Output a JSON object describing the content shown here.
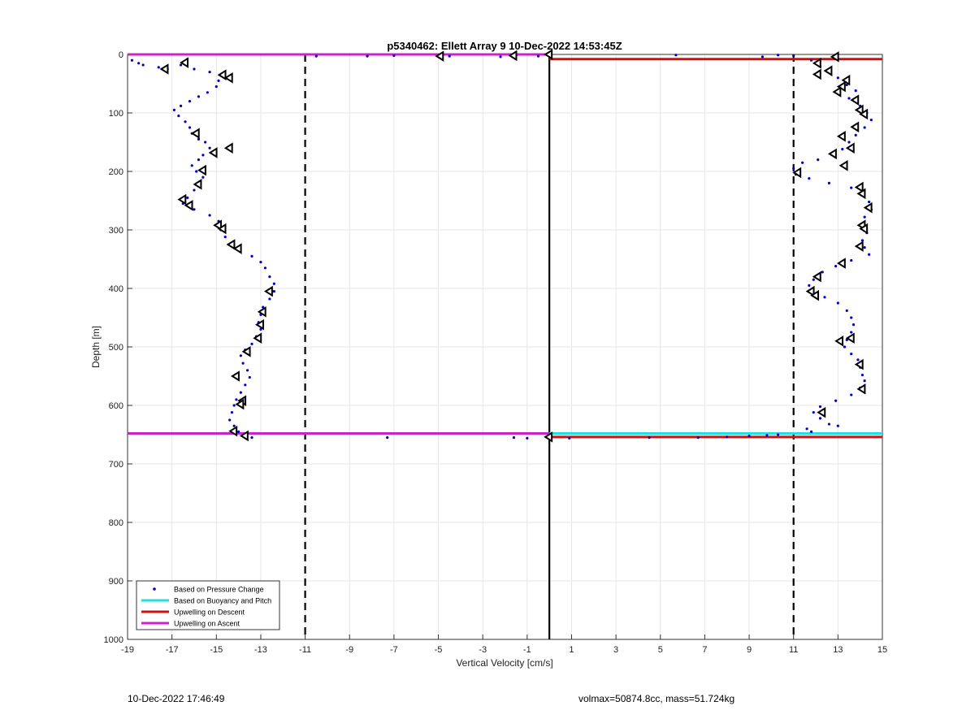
{
  "chart_data": {
    "type": "scatter",
    "title": "p5340462: Ellett Array 9 10-Dec-2022 14:53:45Z",
    "xlabel": "Vertical Velocity [cm/s]",
    "ylabel": "Depth [m]",
    "xlim": [
      -19,
      15
    ],
    "ylim": [
      1000,
      0
    ],
    "x_ticks": [
      "-19",
      "-17",
      "-15",
      "-13",
      "-11",
      "-9",
      "-7",
      "-5",
      "-3",
      "-1",
      "1",
      "3",
      "5",
      "7",
      "9",
      "11",
      "13",
      "15"
    ],
    "y_ticks": [
      "0",
      "100",
      "200",
      "300",
      "400",
      "500",
      "600",
      "700",
      "800",
      "900",
      "1000"
    ],
    "grid": true,
    "y_reversed": true,
    "legend_position": "bottom-left",
    "legend": [
      {
        "label": "Based on Pressure Change",
        "color": "#0000cc",
        "kind": "dot"
      },
      {
        "label": "Based on Buoyancy and Pitch",
        "color": "#22e0e0",
        "kind": "line"
      },
      {
        "label": "Upwelling on Descent",
        "color": "#cc1111",
        "kind": "line"
      },
      {
        "label": "Upwelling on Ascent",
        "color": "#cc22cc",
        "kind": "line"
      }
    ],
    "reference_lines": {
      "vertical_dashed": [
        -11,
        11
      ],
      "vertical_solid": [
        0
      ]
    },
    "series": [
      {
        "name": "Based on Pressure Change",
        "color": "#0000cc",
        "points": [
          [
            -18.8,
            10
          ],
          [
            -18.5,
            15
          ],
          [
            -18.3,
            18
          ],
          [
            -17.6,
            22
          ],
          [
            -17.2,
            25
          ],
          [
            -16.6,
            18
          ],
          [
            -16.0,
            25
          ],
          [
            -15.3,
            30
          ],
          [
            -14.9,
            45
          ],
          [
            -15.0,
            55
          ],
          [
            -15.4,
            65
          ],
          [
            -15.8,
            72
          ],
          [
            -16.2,
            80
          ],
          [
            -16.6,
            88
          ],
          [
            -16.9,
            95
          ],
          [
            -16.7,
            105
          ],
          [
            -16.4,
            115
          ],
          [
            -16.2,
            125
          ],
          [
            -16.1,
            135
          ],
          [
            -15.8,
            145
          ],
          [
            -15.5,
            150
          ],
          [
            -15.3,
            160
          ],
          [
            -15.6,
            172
          ],
          [
            -15.8,
            180
          ],
          [
            -16.1,
            190
          ],
          [
            -15.9,
            200
          ],
          [
            -15.6,
            210
          ],
          [
            -15.8,
            222
          ],
          [
            -16.0,
            232
          ],
          [
            -16.3,
            245
          ],
          [
            -16.5,
            255
          ],
          [
            -16.0,
            265
          ],
          [
            -15.3,
            275
          ],
          [
            -14.9,
            285
          ],
          [
            -14.8,
            300
          ],
          [
            -14.6,
            312
          ],
          [
            -14.3,
            325
          ],
          [
            -14.0,
            335
          ],
          [
            -13.4,
            345
          ],
          [
            -13.0,
            355
          ],
          [
            -12.8,
            365
          ],
          [
            -12.6,
            380
          ],
          [
            -12.4,
            392
          ],
          [
            -12.4,
            405
          ],
          [
            -12.6,
            418
          ],
          [
            -12.9,
            432
          ],
          [
            -13.0,
            445
          ],
          [
            -13.1,
            458
          ],
          [
            -13.0,
            470
          ],
          [
            -13.2,
            482
          ],
          [
            -13.4,
            495
          ],
          [
            -13.7,
            505
          ],
          [
            -13.9,
            515
          ],
          [
            -13.8,
            528
          ],
          [
            -13.6,
            540
          ],
          [
            -13.5,
            552
          ],
          [
            -13.7,
            565
          ],
          [
            -13.9,
            578
          ],
          [
            -14.1,
            590
          ],
          [
            -14.2,
            600
          ],
          [
            -14.3,
            612
          ],
          [
            -14.4,
            625
          ],
          [
            -14.2,
            635
          ],
          [
            -14.0,
            645
          ],
          [
            -13.7,
            652
          ],
          [
            -13.4,
            655
          ],
          [
            -10.5,
            3
          ],
          [
            -8.2,
            3
          ],
          [
            -7.0,
            2
          ],
          [
            -4.5,
            3
          ],
          [
            -2.2,
            4
          ],
          [
            -1.5,
            2
          ],
          [
            -0.5,
            3
          ],
          [
            -7.3,
            655
          ],
          [
            -1.6,
            655
          ],
          [
            -1.0,
            656
          ],
          [
            0.9,
            656
          ],
          [
            4.5,
            655
          ],
          [
            6.7,
            655
          ],
          [
            8.0,
            654
          ],
          [
            9.0,
            652
          ],
          [
            9.8,
            651
          ],
          [
            10.3,
            650
          ],
          [
            5.7,
            1
          ],
          [
            9.6,
            4
          ],
          [
            10.3,
            1
          ],
          [
            11.0,
            2
          ],
          [
            11.8,
            10
          ],
          [
            12.2,
            20
          ],
          [
            12.6,
            28
          ],
          [
            13.0,
            40
          ],
          [
            13.4,
            52
          ],
          [
            13.8,
            62
          ],
          [
            13.5,
            75
          ],
          [
            14.0,
            88
          ],
          [
            14.3,
            100
          ],
          [
            14.5,
            112
          ],
          [
            14.2,
            125
          ],
          [
            13.8,
            138
          ],
          [
            13.5,
            150
          ],
          [
            13.2,
            162
          ],
          [
            12.8,
            172
          ],
          [
            12.1,
            180
          ],
          [
            11.4,
            185
          ],
          [
            11.0,
            195
          ],
          [
            11.1,
            205
          ],
          [
            11.7,
            212
          ],
          [
            12.6,
            220
          ],
          [
            13.6,
            228
          ],
          [
            14.1,
            240
          ],
          [
            14.4,
            252
          ],
          [
            14.5,
            265
          ],
          [
            14.2,
            278
          ],
          [
            14.0,
            292
          ],
          [
            14.3,
            305
          ],
          [
            14.1,
            318
          ],
          [
            14.2,
            330
          ],
          [
            14.4,
            342
          ],
          [
            13.6,
            352
          ],
          [
            12.9,
            362
          ],
          [
            12.3,
            372
          ],
          [
            11.9,
            385
          ],
          [
            11.7,
            395
          ],
          [
            11.8,
            405
          ],
          [
            12.4,
            415
          ],
          [
            13.0,
            425
          ],
          [
            13.4,
            438
          ],
          [
            13.6,
            450
          ],
          [
            13.7,
            462
          ],
          [
            13.6,
            475
          ],
          [
            13.4,
            488
          ],
          [
            13.3,
            500
          ],
          [
            13.6,
            512
          ],
          [
            13.9,
            522
          ],
          [
            14.0,
            535
          ],
          [
            14.1,
            548
          ],
          [
            14.2,
            558
          ],
          [
            14.0,
            570
          ],
          [
            13.6,
            582
          ],
          [
            12.9,
            592
          ],
          [
            12.2,
            602
          ],
          [
            11.9,
            612
          ],
          [
            12.2,
            622
          ],
          [
            12.6,
            632
          ],
          [
            13.0,
            635
          ],
          [
            11.6,
            640
          ],
          [
            11.8,
            645
          ]
        ]
      },
      {
        "name": "Based on Buoyancy and Pitch",
        "color": "#22e0e0",
        "segments": [
          [
            [
              0,
              648
            ],
            [
              15,
              648
            ]
          ]
        ]
      },
      {
        "name": "Upwelling on Descent",
        "color": "#cc1111",
        "segments": [
          [
            [
              0,
              8
            ],
            [
              15,
              8
            ]
          ],
          [
            [
              0,
              654
            ],
            [
              15,
              654
            ]
          ]
        ]
      },
      {
        "name": "Upwelling on Ascent",
        "color": "#cc22cc",
        "segments": [
          [
            [
              -19,
              0
            ],
            [
              0,
              0
            ]
          ],
          [
            [
              -19,
              648
            ],
            [
              0,
              648
            ]
          ]
        ]
      },
      {
        "name": "markers",
        "color": "#000000",
        "points": [
          [
            -17.3,
            25
          ],
          [
            -16.4,
            14
          ],
          [
            -14.7,
            35
          ],
          [
            -14.4,
            40
          ],
          [
            -15.9,
            135
          ],
          [
            -14.4,
            160
          ],
          [
            -15.1,
            168
          ],
          [
            -15.6,
            198
          ],
          [
            -15.8,
            222
          ],
          [
            -16.5,
            248
          ],
          [
            -16.2,
            258
          ],
          [
            -14.9,
            292
          ],
          [
            -14.7,
            298
          ],
          [
            -14.3,
            325
          ],
          [
            -14.0,
            332
          ],
          [
            -12.6,
            405
          ],
          [
            -12.9,
            440
          ],
          [
            -13.0,
            462
          ],
          [
            -13.1,
            485
          ],
          [
            -13.6,
            508
          ],
          [
            -14.1,
            550
          ],
          [
            -13.8,
            592
          ],
          [
            -13.9,
            598
          ],
          [
            -14.2,
            644
          ],
          [
            -13.7,
            652
          ],
          [
            -4.9,
            3
          ],
          [
            -1.6,
            2
          ],
          [
            0,
            0
          ],
          [
            0,
            654
          ],
          [
            12.9,
            4
          ],
          [
            12.1,
            15
          ],
          [
            12.6,
            28
          ],
          [
            12.1,
            34
          ],
          [
            13.4,
            44
          ],
          [
            13.2,
            55
          ],
          [
            13.0,
            64
          ],
          [
            13.8,
            78
          ],
          [
            14.0,
            95
          ],
          [
            14.2,
            102
          ],
          [
            13.8,
            124
          ],
          [
            13.2,
            140
          ],
          [
            13.6,
            160
          ],
          [
            12.8,
            170
          ],
          [
            13.3,
            190
          ],
          [
            11.2,
            202
          ],
          [
            14.0,
            227
          ],
          [
            14.1,
            238
          ],
          [
            14.4,
            262
          ],
          [
            14.1,
            292
          ],
          [
            14.2,
            298
          ],
          [
            14.0,
            328
          ],
          [
            13.2,
            357
          ],
          [
            12.1,
            380
          ],
          [
            11.8,
            405
          ],
          [
            12.0,
            412
          ],
          [
            13.6,
            485
          ],
          [
            13.1,
            490
          ],
          [
            14.0,
            530
          ],
          [
            14.1,
            572
          ],
          [
            12.3,
            612
          ]
        ]
      }
    ]
  },
  "footer": {
    "left_text": "10-Dec-2022 17:46:49",
    "right_text": "volmax=50874.8cc, mass=51.724kg"
  }
}
